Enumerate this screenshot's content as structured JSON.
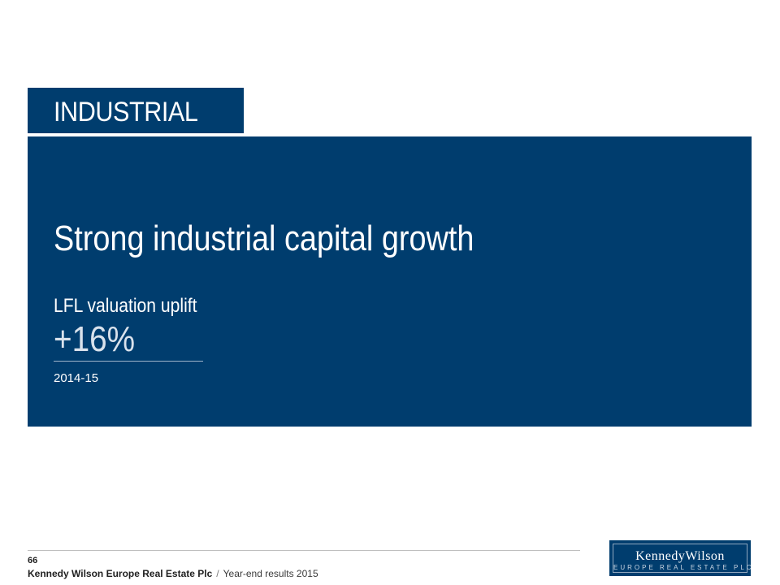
{
  "section": {
    "label": "INDUSTRIAL"
  },
  "main": {
    "headline": "Strong industrial capital growth",
    "metric_label": "LFL valuation uplift",
    "metric_value": "+16%",
    "metric_period": "2014-15"
  },
  "footer": {
    "page_number": "66",
    "company": "Kennedy Wilson Europe Real Estate Plc",
    "separator": "/",
    "document": "Year-end results 2015"
  },
  "logo": {
    "name": "KennedyWilson",
    "subtitle": "EUROPE REAL ESTATE PLC"
  },
  "colors": {
    "brand_navy": "#003d6e",
    "background": "#ffffff"
  }
}
